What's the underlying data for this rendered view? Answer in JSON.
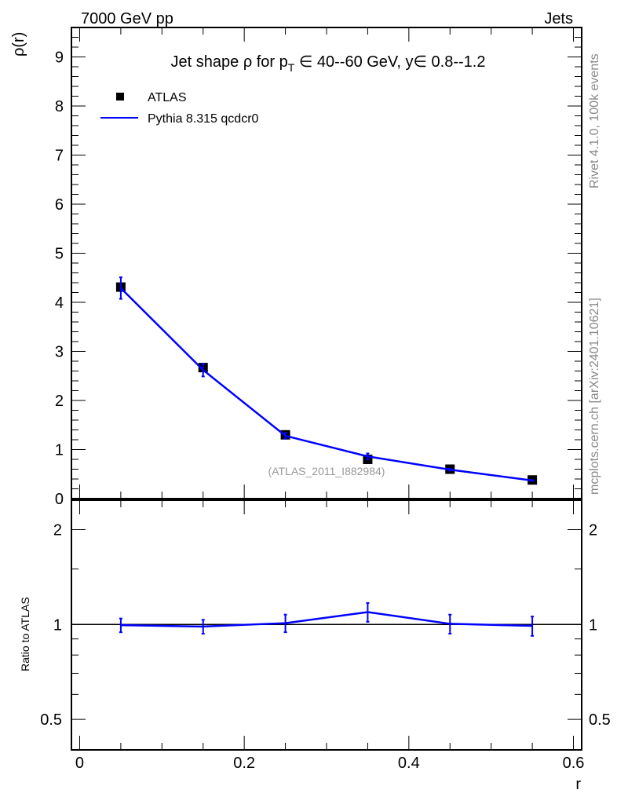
{
  "header": {
    "left": "7000 GeV pp",
    "right": "Jets"
  },
  "side": {
    "rivet": "Rivet 4.1.0,  100k events",
    "mcplots": "mcplots.cern.ch [arXiv:2401.10621]"
  },
  "colors": {
    "data": "#000000",
    "mc": "#0000ff",
    "watermark": "#999999"
  },
  "chart_data": [
    {
      "type": "line",
      "title": "Jet shape ρ for p_T ∈ 40--60 GeV, y∈ 0.8--1.2",
      "title_parts": {
        "a": "Jet shape ρ for p",
        "sub": "T",
        "b": " ∈ 40--60 GeV, y∈ 0.8--1.2"
      },
      "xlabel": "r",
      "ylabel": "ρ(r)",
      "xlim": [
        -0.01,
        0.61
      ],
      "ylim": [
        0,
        9.6
      ],
      "yticks": [
        0,
        1,
        2,
        3,
        4,
        5,
        6,
        7,
        8,
        9
      ],
      "xticks": [
        0,
        0.2,
        0.4,
        0.6
      ],
      "watermark": "(ATLAS_2011_I882984)",
      "legend": {
        "position": "top-left",
        "entries": [
          "ATLAS",
          "Pythia 8.315 qcdcr0"
        ]
      },
      "x": [
        0.05,
        0.15,
        0.25,
        0.35,
        0.45,
        0.55
      ],
      "series": [
        {
          "name": "ATLAS",
          "style": "marker",
          "values": [
            4.31,
            2.67,
            1.3,
            0.8,
            0.6,
            0.38
          ],
          "errors": [
            0.05,
            0.05,
            0.03,
            0.02,
            0.01,
            0.01
          ]
        },
        {
          "name": "Pythia 8.315 qcdcr0",
          "style": "line",
          "values": [
            4.29,
            2.62,
            1.28,
            0.86,
            0.59,
            0.37
          ],
          "errors": [
            0.22,
            0.13,
            0.06,
            0.06,
            0.02,
            0.01
          ]
        }
      ]
    },
    {
      "type": "line",
      "scale": "log",
      "ylabel": "Ratio to ATLAS",
      "xlabel": "r",
      "ylim": [
        0.4,
        2.48
      ],
      "yticks": [
        0.5,
        1,
        2
      ],
      "xticks": [
        0,
        0.2,
        0.4,
        0.6
      ],
      "x": [
        0.05,
        0.15,
        0.25,
        0.35,
        0.45,
        0.55
      ],
      "series": [
        {
          "name": "Pythia 8.315 qcdcr0",
          "values": [
            0.995,
            0.985,
            1.01,
            1.095,
            1.005,
            0.99
          ],
          "errors": [
            0.05,
            0.05,
            0.065,
            0.075,
            0.07,
            0.07
          ]
        }
      ]
    }
  ]
}
